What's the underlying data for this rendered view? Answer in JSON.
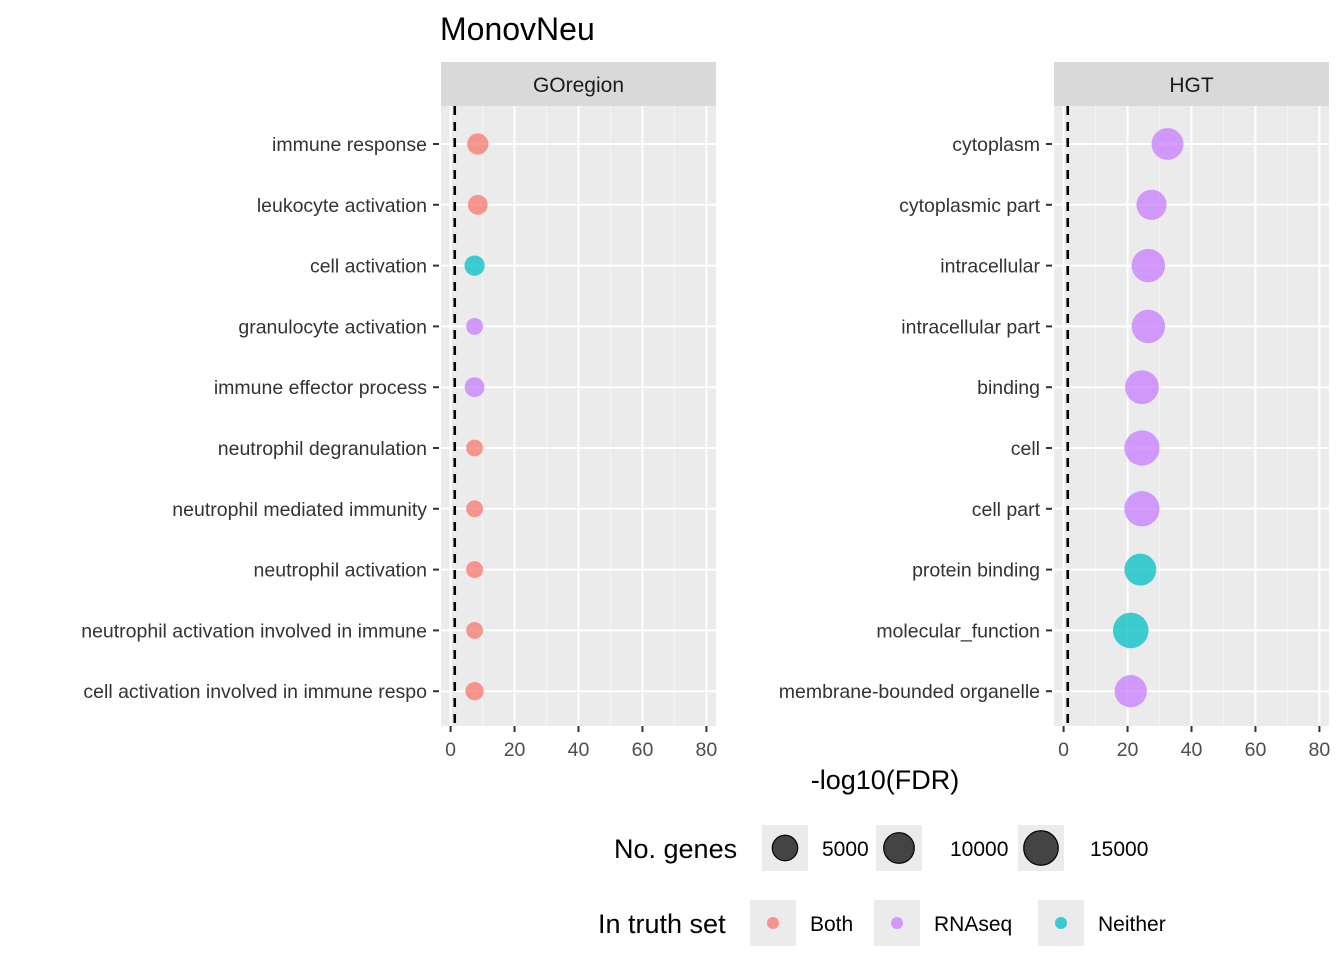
{
  "chart_data": {
    "type": "scatter",
    "title": "MonovNeu",
    "xlabel": "-log10(FDR)",
    "xlim": [
      -3,
      83
    ],
    "x_ticks": [
      "0",
      "20",
      "40",
      "60",
      "80"
    ],
    "reference_line_x": 1.3,
    "grid": true,
    "legend_position": "bottom",
    "colors": {
      "Both": "#F8766D",
      "RNAseq": "#C77CFF",
      "Neither": "#00BFC4"
    },
    "size_legend": {
      "title": "No. genes",
      "values": [
        "5000",
        "10000",
        "15000"
      ]
    },
    "color_legend": {
      "title": "In truth set",
      "entries": [
        "Both",
        "RNAseq",
        "Neither"
      ]
    },
    "panels": [
      {
        "strip": "GOregion",
        "terms": [
          {
            "label": "immune response",
            "x": 8.5,
            "genes": 2200,
            "group": "Both"
          },
          {
            "label": "leukocyte activation",
            "x": 8.5,
            "genes": 1500,
            "group": "Both"
          },
          {
            "label": "cell activation",
            "x": 7.5,
            "genes": 1700,
            "group": "Neither"
          },
          {
            "label": "granulocyte activation",
            "x": 7.5,
            "genes": 500,
            "group": "RNAseq"
          },
          {
            "label": "immune effector process",
            "x": 7.5,
            "genes": 1500,
            "group": "RNAseq"
          },
          {
            "label": "neutrophil degranulation",
            "x": 7.5,
            "genes": 480,
            "group": "Both"
          },
          {
            "label": "neutrophil mediated immunity",
            "x": 7.5,
            "genes": 500,
            "group": "Both"
          },
          {
            "label": "neutrophil activation",
            "x": 7.5,
            "genes": 500,
            "group": "Both"
          },
          {
            "label": "neutrophil activation involved in immune",
            "x": 7.5,
            "genes": 480,
            "group": "Both"
          },
          {
            "label": "cell activation involved in immune respo",
            "x": 7.5,
            "genes": 900,
            "group": "Both"
          }
        ]
      },
      {
        "strip": "HGT",
        "terms": [
          {
            "label": "cytoplasm",
            "x": 32.5,
            "genes": 11500,
            "group": "RNAseq"
          },
          {
            "label": "cytoplasmic part",
            "x": 27.5,
            "genes": 9500,
            "group": "RNAseq"
          },
          {
            "label": "intracellular",
            "x": 26.5,
            "genes": 13500,
            "group": "RNAseq"
          },
          {
            "label": "intracellular part",
            "x": 26.5,
            "genes": 13500,
            "group": "RNAseq"
          },
          {
            "label": "binding",
            "x": 24.5,
            "genes": 14000,
            "group": "RNAseq"
          },
          {
            "label": "cell",
            "x": 24.5,
            "genes": 16000,
            "group": "RNAseq"
          },
          {
            "label": "cell part",
            "x": 24.5,
            "genes": 16000,
            "group": "RNAseq"
          },
          {
            "label": "protein binding",
            "x": 24,
            "genes": 11500,
            "group": "Neither"
          },
          {
            "label": "molecular_function",
            "x": 21,
            "genes": 16500,
            "group": "Neither"
          },
          {
            "label": "membrane-bounded organelle",
            "x": 21,
            "genes": 12000,
            "group": "RNAseq"
          }
        ]
      }
    ]
  }
}
